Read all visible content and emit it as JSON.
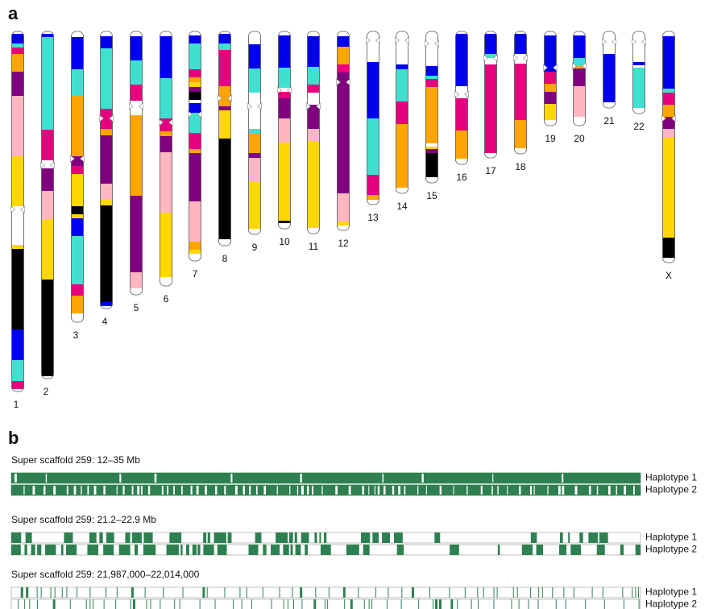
{
  "panel_a": {
    "label": "a",
    "chromosomes": [
      "1",
      "2",
      "3",
      "4",
      "5",
      "6",
      "7",
      "8",
      "9",
      "10",
      "11",
      "12",
      "13",
      "14",
      "15",
      "16",
      "17",
      "18",
      "19",
      "20",
      "21",
      "22",
      "X"
    ]
  },
  "panel_b": {
    "label": "b",
    "tracks": [
      {
        "title": "Super scaffold 259: 12–35 Mb",
        "haplotypes": [
          "Haplotype 1",
          "Haplotype 2"
        ]
      },
      {
        "title": "Super scaffold 259: 21.2–22.9 Mb",
        "haplotypes": [
          "Haplotype 1",
          "Haplotype 2"
        ]
      },
      {
        "title": "Super scaffold 259: 21,987,000–22,014,000",
        "haplotypes": [
          "Haplotype 1",
          "Haplotype 2"
        ]
      }
    ]
  }
}
